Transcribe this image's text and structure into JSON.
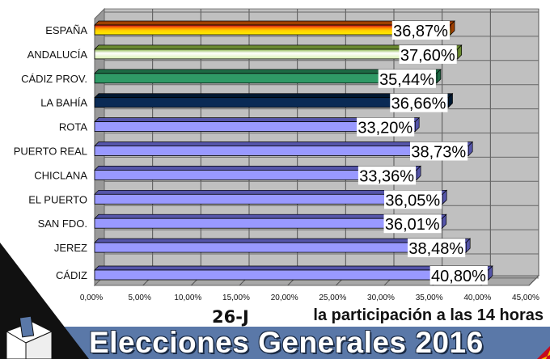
{
  "chart_data": {
    "type": "bar",
    "orientation": "horizontal",
    "three_d": true,
    "categories": [
      "ESPAÑA",
      "ANDALUCÍA",
      "CÁDIZ PROV.",
      "LA BAHÍA",
      "ROTA",
      "PUERTO REAL",
      "CHICLANA",
      "EL PUERTO",
      "SAN FDO.",
      "JEREZ",
      "CÁDIZ"
    ],
    "values": [
      36.87,
      37.6,
      35.44,
      36.66,
      33.2,
      38.73,
      33.36,
      36.05,
      36.01,
      38.48,
      40.8
    ],
    "value_labels": [
      "36,87%",
      "37,60%",
      "35,44%",
      "36,66%",
      "33,20%",
      "38,73%",
      "33,36%",
      "36,05%",
      "36,01%",
      "38,48%",
      "40,80%"
    ],
    "bar_colors": [
      "spain-flag",
      "#f4fbe4",
      "#2f9a66",
      "#0a2a55",
      "#9999ff",
      "#9999ff",
      "#9999ff",
      "#9999ff",
      "#9999ff",
      "#9999ff",
      "#9999ff"
    ],
    "xlim": [
      0,
      45
    ],
    "x_ticks": [
      "0,00%",
      "5,00%",
      "10,00%",
      "15,00%",
      "20,00%",
      "25,00%",
      "30,00%",
      "35,00%",
      "40,00%",
      "45,00%"
    ],
    "grid": true,
    "xlabel": "",
    "ylabel": ""
  },
  "subtitle": "la participación a las 14 horas",
  "banner": {
    "tag": "26-J",
    "title": "Elecciones Generales 2016"
  }
}
